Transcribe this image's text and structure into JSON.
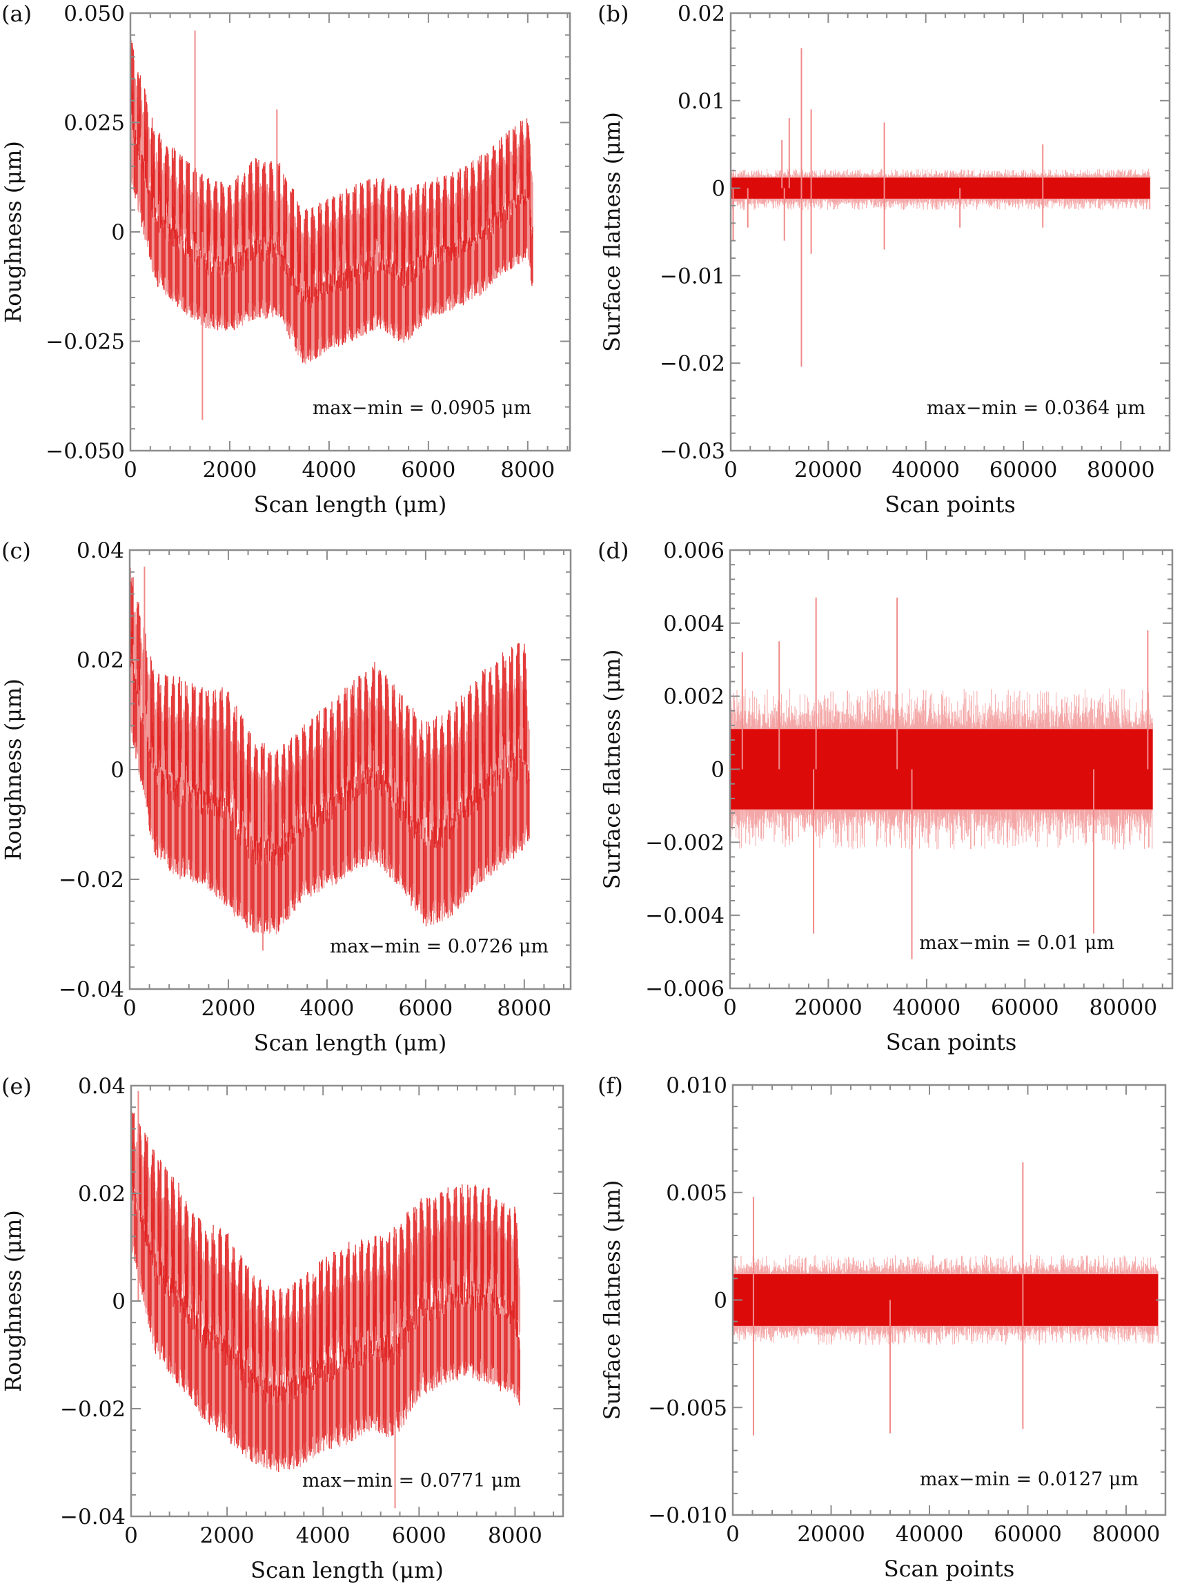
{
  "colors": {
    "signal_dark": "#dd0a0a",
    "signal_light": "#f08a8a",
    "axis": "#8c8c8c",
    "text": "#111111"
  },
  "chart_data": [
    {
      "id": "a",
      "type": "line",
      "panel_label": "(a)",
      "title": "",
      "xlabel": "Scan length (μm)",
      "ylabel": "Roughness (μm)",
      "xlim": [
        0,
        8850
      ],
      "ylim": [
        -0.05,
        0.05
      ],
      "xticks": [
        0,
        2000,
        4000,
        6000,
        8000
      ],
      "xtick_labels": [
        "0",
        "2000",
        "4000",
        "6000",
        "8000"
      ],
      "yticks": [
        -0.05,
        -0.025,
        0,
        0.025,
        0.05
      ],
      "ytick_labels": [
        "−0.050",
        "−0.025",
        "0",
        "0.025",
        "0.050"
      ],
      "annotation": "max−min = 0.0905 μm",
      "series": [
        {
          "name": "Roughness",
          "x_range": [
            0,
            8100
          ],
          "envelope_x": [
            0,
            500,
            1000,
            1500,
            2000,
            2500,
            3000,
            3500,
            4000,
            4500,
            5000,
            5500,
            6000,
            6500,
            7000,
            7500,
            8000,
            8100
          ],
          "envelope_upper": [
            0.045,
            0.024,
            0.018,
            0.013,
            0.011,
            0.017,
            0.016,
            0.005,
            0.008,
            0.011,
            0.013,
            0.01,
            0.012,
            0.014,
            0.017,
            0.022,
            0.027,
            0.018
          ],
          "envelope_lower": [
            0.012,
            -0.012,
            -0.018,
            -0.022,
            -0.023,
            -0.02,
            -0.02,
            -0.031,
            -0.027,
            -0.025,
            -0.022,
            -0.026,
            -0.02,
            -0.018,
            -0.015,
            -0.01,
            -0.006,
            -0.015
          ],
          "spikes": [
            {
              "x": 1300,
              "y": 0.046
            },
            {
              "x": 1450,
              "y": -0.043
            },
            {
              "x": 2950,
              "y": 0.028
            }
          ]
        }
      ]
    },
    {
      "id": "b",
      "type": "line",
      "panel_label": "(b)",
      "title": "",
      "xlabel": "Scan points",
      "ylabel": "Surface flatness (μm)",
      "xlim": [
        0,
        90000
      ],
      "ylim": [
        -0.03,
        0.02
      ],
      "xticks": [
        0,
        20000,
        40000,
        60000,
        80000
      ],
      "xtick_labels": [
        "0",
        "20000",
        "40000",
        "60000",
        "80000"
      ],
      "yticks": [
        -0.03,
        -0.02,
        -0.01,
        0,
        0.01,
        0.02
      ],
      "ytick_labels": [
        "−0.03",
        "−0.02",
        "−0.01",
        "0",
        "0.01",
        "0.02"
      ],
      "annotation": "max−min = 0.0364 μm",
      "series": [
        {
          "name": "Surface flatness",
          "x_range": [
            0,
            86000
          ],
          "band": [
            -0.0012,
            0.0012
          ],
          "noise": [
            -0.0025,
            0.0022
          ],
          "spikes": [
            {
              "x": 10500,
              "y": 0.0055
            },
            {
              "x": 12000,
              "y": 0.008
            },
            {
              "x": 14500,
              "y": 0.016
            },
            {
              "x": 14500,
              "y": -0.0204
            },
            {
              "x": 16500,
              "y": 0.009
            },
            {
              "x": 16500,
              "y": -0.0075
            },
            {
              "x": 31500,
              "y": 0.0075
            },
            {
              "x": 31500,
              "y": -0.007
            },
            {
              "x": 500,
              "y": -0.006
            },
            {
              "x": 3500,
              "y": -0.0045
            },
            {
              "x": 11000,
              "y": -0.006
            },
            {
              "x": 64000,
              "y": 0.005
            },
            {
              "x": 64000,
              "y": -0.0045
            },
            {
              "x": 47000,
              "y": -0.0045
            }
          ]
        }
      ]
    },
    {
      "id": "c",
      "type": "line",
      "panel_label": "(c)",
      "title": "",
      "xlabel": "Scan length (μm)",
      "ylabel": "Roughness (μm)",
      "xlim": [
        0,
        8940
      ],
      "ylim": [
        -0.04,
        0.04
      ],
      "xticks": [
        0,
        2000,
        4000,
        6000,
        8000
      ],
      "xtick_labels": [
        "0",
        "2000",
        "4000",
        "6000",
        "8000"
      ],
      "yticks": [
        -0.04,
        -0.02,
        0,
        0.02,
        0.04
      ],
      "ytick_labels": [
        "−0.04",
        "−0.02",
        "0",
        "0.02",
        "0.04"
      ],
      "annotation": "max−min = 0.0726 μm",
      "series": [
        {
          "name": "Roughness",
          "x_range": [
            0,
            8100
          ],
          "envelope_x": [
            0,
            500,
            1000,
            1500,
            2000,
            2500,
            3000,
            3500,
            4000,
            4500,
            5000,
            5500,
            6000,
            6500,
            7000,
            7500,
            8000,
            8100
          ],
          "envelope_upper": [
            0.038,
            0.018,
            0.017,
            0.015,
            0.015,
            0.006,
            0.004,
            0.008,
            0.012,
            0.016,
            0.02,
            0.014,
            0.009,
            0.011,
            0.017,
            0.021,
            0.024,
            0.012
          ],
          "envelope_lower": [
            0.008,
            -0.016,
            -0.02,
            -0.021,
            -0.026,
            -0.03,
            -0.03,
            -0.024,
            -0.022,
            -0.019,
            -0.017,
            -0.022,
            -0.029,
            -0.027,
            -0.022,
            -0.018,
            -0.015,
            -0.013
          ],
          "spikes": [
            {
              "x": 300,
              "y": 0.037
            },
            {
              "x": 2700,
              "y": -0.033
            }
          ]
        }
      ]
    },
    {
      "id": "d",
      "type": "line",
      "panel_label": "(d)",
      "title": "",
      "xlabel": "Scan points",
      "ylabel": "Surface flatness (μm)",
      "xlim": [
        0,
        90000
      ],
      "ylim": [
        -0.006,
        0.006
      ],
      "xticks": [
        0,
        20000,
        40000,
        60000,
        80000
      ],
      "xtick_labels": [
        "0",
        "20000",
        "40000",
        "60000",
        "80000"
      ],
      "yticks": [
        -0.006,
        -0.004,
        -0.002,
        0,
        0.002,
        0.004,
        0.006
      ],
      "ytick_labels": [
        "−0.006",
        "−0.004",
        "−0.002",
        "0",
        "0.002",
        "0.004",
        "0.006"
      ],
      "annotation": "max−min = 0.01 μm",
      "series": [
        {
          "name": "Surface flatness",
          "x_range": [
            0,
            86000
          ],
          "band": [
            -0.0011,
            0.0011
          ],
          "noise": [
            -0.0022,
            0.0022
          ],
          "spikes": [
            {
              "x": 17500,
              "y": 0.0047
            },
            {
              "x": 34000,
              "y": 0.0047
            },
            {
              "x": 37000,
              "y": -0.0052
            },
            {
              "x": 17000,
              "y": -0.0045
            },
            {
              "x": 74000,
              "y": -0.0045
            },
            {
              "x": 85000,
              "y": 0.0038
            },
            {
              "x": 2500,
              "y": 0.0032
            },
            {
              "x": 10000,
              "y": 0.0035
            }
          ]
        }
      ]
    },
    {
      "id": "e",
      "type": "line",
      "panel_label": "(e)",
      "title": "",
      "xlabel": "Scan length (μm)",
      "ylabel": "Roughness (μm)",
      "xlim": [
        0,
        9000
      ],
      "ylim": [
        -0.04,
        0.04
      ],
      "xticks": [
        0,
        2000,
        4000,
        6000,
        8000
      ],
      "xtick_labels": [
        "0",
        "2000",
        "4000",
        "6000",
        "8000"
      ],
      "yticks": [
        -0.04,
        -0.02,
        0,
        0.02,
        0.04
      ],
      "ytick_labels": [
        "−0.04",
        "−0.02",
        "0",
        "0.02",
        "0.04"
      ],
      "annotation": "max−min = 0.0771 μm",
      "series": [
        {
          "name": "Roughness",
          "x_range": [
            0,
            8100
          ],
          "envelope_x": [
            0,
            500,
            1000,
            1500,
            2000,
            2500,
            3000,
            3500,
            4000,
            4500,
            5000,
            5500,
            6000,
            6500,
            7000,
            7500,
            8000,
            8100
          ],
          "envelope_upper": [
            0.036,
            0.028,
            0.022,
            0.015,
            0.013,
            0.006,
            0.002,
            0.004,
            0.008,
            0.011,
            0.012,
            0.014,
            0.019,
            0.021,
            0.022,
            0.021,
            0.018,
            0.01
          ],
          "envelope_lower": [
            0.01,
            -0.01,
            -0.016,
            -0.022,
            -0.026,
            -0.03,
            -0.032,
            -0.031,
            -0.028,
            -0.027,
            -0.024,
            -0.026,
            -0.018,
            -0.016,
            -0.014,
            -0.016,
            -0.018,
            -0.02
          ],
          "spikes": [
            {
              "x": 5500,
              "y": -0.0385
            },
            {
              "x": 150,
              "y": 0.039
            }
          ]
        }
      ]
    },
    {
      "id": "f",
      "type": "line",
      "panel_label": "(f)",
      "title": "",
      "xlabel": "Scan points",
      "ylabel": "Surface flatness (μm)",
      "xlim": [
        0,
        88000
      ],
      "ylim": [
        -0.01,
        0.01
      ],
      "xticks": [
        0,
        20000,
        40000,
        60000,
        80000
      ],
      "xtick_labels": [
        "0",
        "20000",
        "40000",
        "60000",
        "80000"
      ],
      "yticks": [
        -0.01,
        -0.005,
        0,
        0.005,
        0.01
      ],
      "ytick_labels": [
        "−0.010",
        "−0.005",
        "0",
        "0.005",
        "0.010"
      ],
      "annotation": "max−min = 0.0127 μm",
      "series": [
        {
          "name": "Surface flatness",
          "x_range": [
            0,
            86500
          ],
          "band": [
            -0.0012,
            0.0012
          ],
          "noise": [
            -0.0021,
            0.0021
          ],
          "spikes": [
            {
              "x": 59000,
              "y": 0.0064
            },
            {
              "x": 59000,
              "y": -0.006
            },
            {
              "x": 4200,
              "y": 0.0048
            },
            {
              "x": 4200,
              "y": -0.0063
            },
            {
              "x": 32000,
              "y": -0.0062
            }
          ]
        }
      ]
    }
  ]
}
